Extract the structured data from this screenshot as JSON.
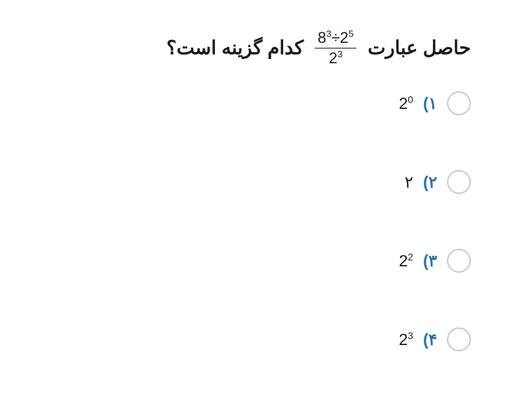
{
  "question": {
    "lead_text": "حاصل عبارت",
    "tail_text": "کدام گزینه است؟",
    "fraction": {
      "num_base1": "8",
      "num_exp1": "3",
      "num_op": "÷",
      "num_base2": "2",
      "num_exp2": "5",
      "den_base": "2",
      "den_exp": "3"
    }
  },
  "options": [
    {
      "label": "۱)",
      "math_base": "2",
      "math_exp": "0",
      "plain": ""
    },
    {
      "label": "۲)",
      "math_base": "",
      "math_exp": "",
      "plain": "۲"
    },
    {
      "label": "۳)",
      "math_base": "2",
      "math_exp": "2",
      "plain": ""
    },
    {
      "label": "۴)",
      "math_base": "2",
      "math_exp": "3",
      "plain": ""
    }
  ],
  "colors": {
    "text": "#1a1a1a",
    "accent": "#2a72a8",
    "radio_border": "#c9c9c9",
    "background": "#ffffff"
  }
}
